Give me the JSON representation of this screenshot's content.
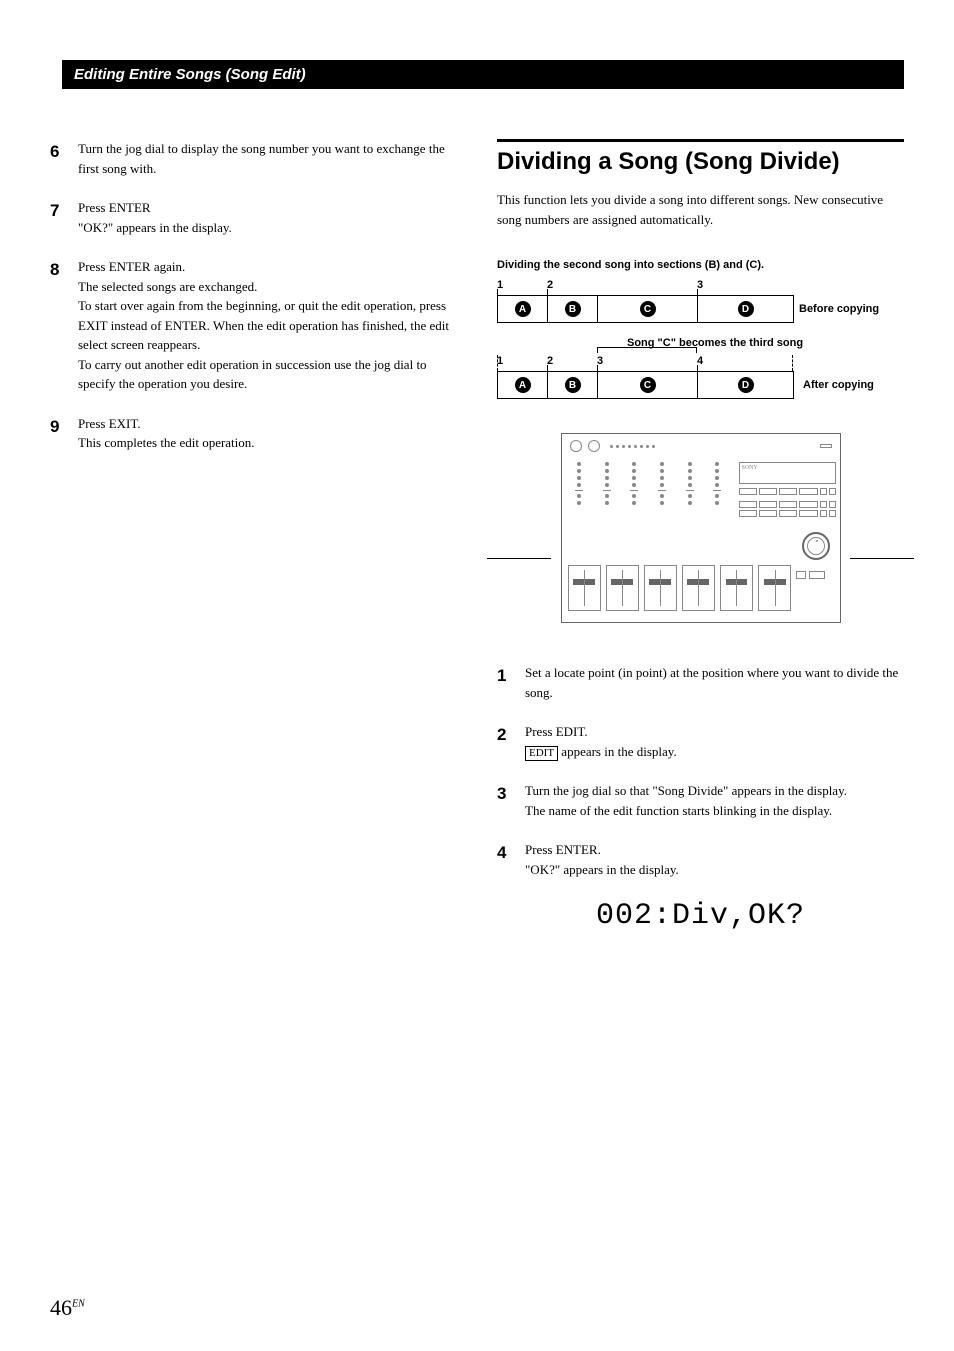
{
  "section_header": "Editing Entire Songs (Song Edit)",
  "left_steps": [
    {
      "num": "6",
      "text": "Turn the jog dial to display the song number you want to exchange the first song with."
    },
    {
      "num": "7",
      "text": "Press ENTER\n\"OK?\" appears in the display."
    },
    {
      "num": "8",
      "text": "Press ENTER again.\nThe selected songs are exchanged.\nTo start over again from the beginning, or quit the edit operation, press EXIT instead of ENTER. When the edit operation has finished, the edit select screen reappears.\nTo carry out another edit operation in succession use the jog dial to specify the operation you desire."
    },
    {
      "num": "9",
      "text": "Press EXIT.\nThis completes the edit operation."
    }
  ],
  "right_title": "Dividing a Song (Song Divide)",
  "right_intro": "This function lets you divide a song into different songs.  New consecutive song numbers are assigned automatically.",
  "diagram": {
    "caption": "Dividing the second song into sections (B) and (C).",
    "before": {
      "nums": [
        "1",
        "2",
        "3"
      ],
      "letters": [
        "A",
        "B",
        "C",
        "D"
      ],
      "widths": [
        50,
        50,
        100,
        95
      ],
      "label": "Before copying"
    },
    "note": "Song \"C\" becomes the third song",
    "after": {
      "nums": [
        "1",
        "2",
        "3",
        "4"
      ],
      "letters": [
        "A",
        "B",
        "C",
        "D"
      ],
      "widths": [
        50,
        50,
        100,
        95
      ],
      "label": "After copying"
    }
  },
  "device_brand": "SONY",
  "right_steps": [
    {
      "num": "1",
      "text": "Set a locate point (in point) at the position where you want to divide the song."
    },
    {
      "num": "2",
      "pre": "Press EDIT.",
      "box": "EDIT",
      "post": " appears in the display."
    },
    {
      "num": "3",
      "text": "Turn the jog dial so that \"Song Divide\" appears in the display.\nThe name of the edit function starts blinking in the display."
    },
    {
      "num": "4",
      "text": "Press ENTER.\n\"OK?\" appears in the display."
    }
  ],
  "display": "002:Div,OK?",
  "page": {
    "num": "46",
    "suffix": "EN"
  }
}
